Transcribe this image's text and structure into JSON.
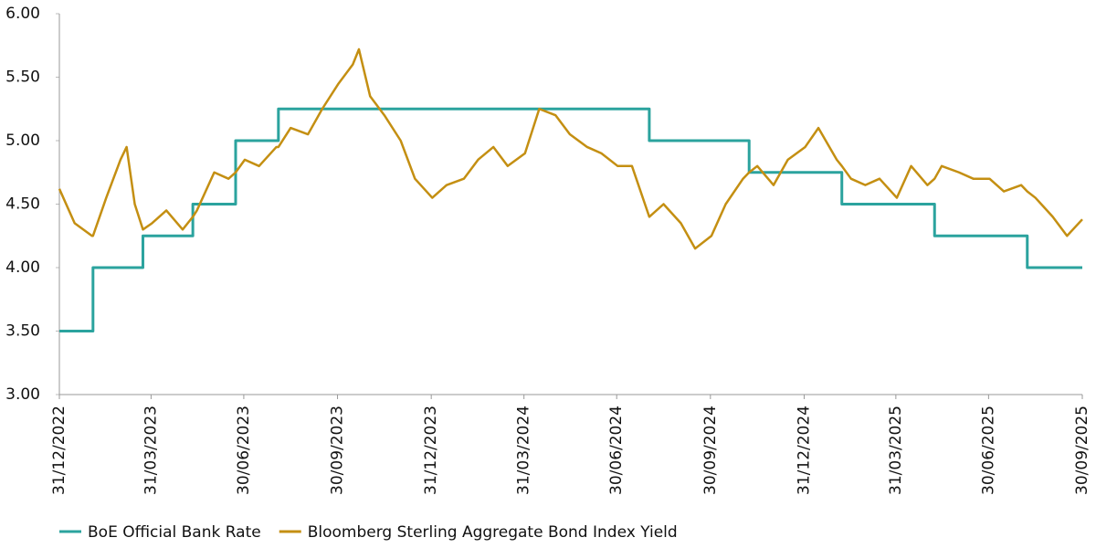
{
  "chart_data": {
    "type": "line",
    "x": [
      "31/12/2022",
      "15/01/2023",
      "01/02/2023",
      "02/02/2023",
      "15/02/2023",
      "01/03/2023",
      "07/03/2023",
      "15/03/2023",
      "23/03/2023",
      "01/04/2023",
      "15/04/2023",
      "01/05/2023",
      "11/05/2023",
      "15/05/2023",
      "01/06/2023",
      "15/06/2023",
      "22/06/2023",
      "01/07/2023",
      "15/07/2023",
      "01/08/2023",
      "03/08/2023",
      "15/08/2023",
      "01/09/2023",
      "15/09/2023",
      "01/10/2023",
      "15/10/2023",
      "21/10/2023",
      "01/11/2023",
      "15/11/2023",
      "01/12/2023",
      "15/12/2023",
      "01/01/2024",
      "15/01/2024",
      "01/02/2024",
      "15/02/2024",
      "01/03/2024",
      "15/03/2024",
      "01/04/2024",
      "15/04/2024",
      "01/05/2024",
      "15/05/2024",
      "01/06/2024",
      "15/06/2024",
      "01/07/2024",
      "15/07/2024",
      "01/08/2024",
      "15/08/2024",
      "01/09/2024",
      "15/09/2024",
      "01/10/2024",
      "15/10/2024",
      "01/11/2024",
      "07/11/2024",
      "15/11/2024",
      "01/12/2024",
      "15/12/2024",
      "01/01/2025",
      "14/01/2025",
      "01/02/2025",
      "06/02/2025",
      "15/02/2025",
      "01/03/2025",
      "15/03/2025",
      "01/04/2025",
      "15/04/2025",
      "01/05/2025",
      "08/05/2025",
      "15/05/2025",
      "01/06/2025",
      "15/06/2025",
      "01/07/2025",
      "15/07/2025",
      "01/08/2025",
      "07/08/2025",
      "15/08/2025",
      "01/09/2025",
      "15/09/2025",
      "30/09/2025"
    ],
    "series": [
      {
        "name": "BoE Official Bank Rate",
        "color": "#2ba39e",
        "step": "after",
        "values": [
          3.5,
          3.5,
          3.5,
          4,
          4,
          4,
          4,
          4,
          4.25,
          4.25,
          4.25,
          4.25,
          4.5,
          4.5,
          4.5,
          4.5,
          5,
          5,
          5,
          5,
          5.25,
          5.25,
          5.25,
          5.25,
          5.25,
          5.25,
          5.25,
          5.25,
          5.25,
          5.25,
          5.25,
          5.25,
          5.25,
          5.25,
          5.25,
          5.25,
          5.25,
          5.25,
          5.25,
          5.25,
          5.25,
          5.25,
          5.25,
          5.25,
          5.25,
          5,
          5,
          5,
          5,
          5,
          5,
          5,
          4.75,
          4.75,
          4.75,
          4.75,
          4.75,
          4.75,
          4.75,
          4.5,
          4.5,
          4.5,
          4.5,
          4.5,
          4.5,
          4.5,
          4.25,
          4.25,
          4.25,
          4.25,
          4.25,
          4.25,
          4.25,
          4,
          4,
          4,
          4,
          4
        ]
      },
      {
        "name": "Bloomberg Sterling Aggregate Bond Index Yield",
        "color": "#c48f12",
        "values": [
          4.62,
          4.35,
          4.25,
          4.25,
          4.55,
          4.85,
          4.95,
          4.5,
          4.3,
          4.35,
          4.45,
          4.3,
          4.4,
          4.45,
          4.75,
          4.7,
          4.75,
          4.85,
          4.8,
          4.95,
          4.95,
          5.1,
          5.05,
          5.25,
          5.45,
          5.6,
          5.72,
          5.35,
          5.2,
          5,
          4.7,
          4.55,
          4.65,
          4.7,
          4.85,
          4.95,
          4.8,
          4.9,
          5.25,
          5.2,
          5.05,
          4.95,
          4.9,
          4.8,
          4.8,
          4.4,
          4.5,
          4.35,
          4.15,
          4.25,
          4.5,
          4.7,
          4.75,
          4.8,
          4.65,
          4.85,
          4.95,
          5.1,
          4.85,
          4.8,
          4.7,
          4.65,
          4.7,
          4.55,
          4.8,
          4.65,
          4.7,
          4.8,
          4.75,
          4.7,
          4.7,
          4.6,
          4.65,
          4.6,
          4.55,
          4.4,
          4.25,
          4.38
        ]
      }
    ],
    "xlim": [
      "31/12/2022",
      "30/09/2025"
    ],
    "xticks": [
      "31/12/2022",
      "31/03/2023",
      "30/06/2023",
      "30/09/2023",
      "31/12/2023",
      "31/03/2024",
      "30/06/2024",
      "30/09/2024",
      "31/12/2024",
      "31/03/2025",
      "30/06/2025",
      "30/09/2025"
    ],
    "ylim": [
      3,
      6
    ],
    "yticks": [
      {
        "value": 3,
        "label": "3.00"
      },
      {
        "value": 3.5,
        "label": "3.50"
      },
      {
        "value": 4,
        "label": "4.00"
      },
      {
        "value": 4.5,
        "label": "4.50"
      },
      {
        "value": 5,
        "label": "5.00"
      },
      {
        "value": 5.5,
        "label": "5.50"
      },
      {
        "value": 6,
        "label": "6.00"
      }
    ],
    "grid": false,
    "legend": "bottom-left"
  }
}
